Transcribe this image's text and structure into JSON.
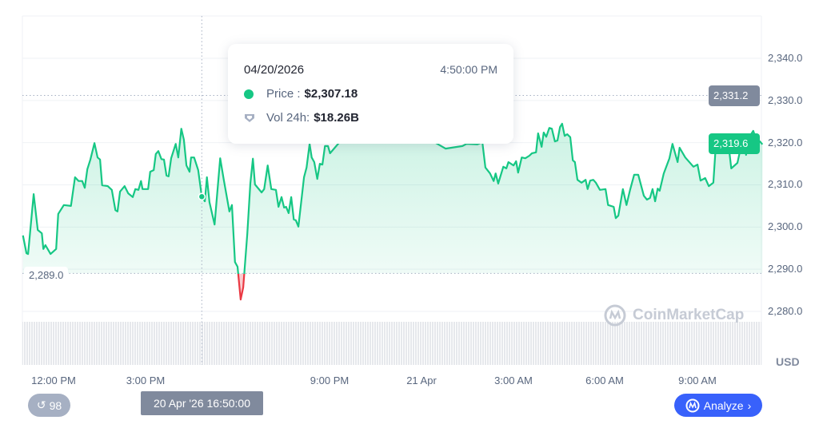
{
  "tooltip": {
    "date": "04/20/2026",
    "time": "4:50:00 PM",
    "price_label": "Price :",
    "price_value": "$2,307.18",
    "vol_label": "Vol 24h:",
    "vol_value": "$18.26B"
  },
  "crosshair_time": "20 Apr '26 16:50:00",
  "crosshair_price": "2,331.2",
  "current_price": "2,319.6",
  "baseline_label": "2,289.0",
  "currency": "USD",
  "history_count": "98",
  "analyze_label": "Analyze",
  "watermark": "CoinMarketCap",
  "colors": {
    "up": "#16c784",
    "down": "#ea3943",
    "crosshair_badge": "#808a9d",
    "analyze": "#3861fb"
  },
  "chart_data": {
    "type": "area",
    "baseline": 2289.0,
    "ylim": [
      2270,
      2350
    ],
    "y_ticks": [
      "2,340.0",
      "2,330.0",
      "2,320.0",
      "2,310.0",
      "2,300.0",
      "2,290.0",
      "2,280.0"
    ],
    "x_ticks": [
      "12:00 PM",
      "3:00 PM",
      "9:00 PM",
      "21 Apr",
      "3:00 AM",
      "6:00 AM",
      "9:00 AM"
    ],
    "grid": true,
    "points": [
      [
        "04/20 11:00",
        2298.0
      ],
      [
        "04/20 11:07",
        2293.8
      ],
      [
        "04/20 11:10",
        2293.6
      ],
      [
        "04/20 11:21",
        2307.8
      ],
      [
        "04/20 11:29",
        2299.3
      ],
      [
        "04/20 11:37",
        2298.5
      ],
      [
        "04/20 11:40",
        2294.8
      ],
      [
        "04/20 11:44",
        2295.7
      ],
      [
        "04/20 11:54",
        2293.6
      ],
      [
        "04/20 12:05",
        2294.8
      ],
      [
        "04/20 12:09",
        2303.1
      ],
      [
        "04/20 12:20",
        2305.2
      ],
      [
        "04/20 12:34",
        2305.0
      ],
      [
        "04/20 12:42",
        2311.8
      ],
      [
        "04/20 12:49",
        2310.9
      ],
      [
        "04/20 12:56",
        2310.9
      ],
      [
        "04/20 13:01",
        2309.3
      ],
      [
        "04/20 13:06",
        2313.7
      ],
      [
        "04/20 13:12",
        2316.0
      ],
      [
        "04/20 13:20",
        2319.9
      ],
      [
        "04/20 13:26",
        2316.5
      ],
      [
        "04/20 13:31",
        2316.0
      ],
      [
        "04/20 13:35",
        2309.9
      ],
      [
        "04/20 13:46",
        2309.7
      ],
      [
        "04/20 13:54",
        2308.8
      ],
      [
        "04/20 14:01",
        2304.0
      ],
      [
        "04/20 14:05",
        2303.7
      ],
      [
        "04/20 14:10",
        2308.4
      ],
      [
        "04/20 14:19",
        2309.7
      ],
      [
        "04/20 14:26",
        2308.0
      ],
      [
        "04/20 14:35",
        2307.1
      ],
      [
        "04/20 14:40",
        2309.0
      ],
      [
        "04/20 14:46",
        2308.8
      ],
      [
        "04/20 14:51",
        2310.9
      ],
      [
        "04/20 14:54",
        2309.0
      ],
      [
        "04/20 15:05",
        2309.0
      ],
      [
        "04/20 15:09",
        2313.1
      ],
      [
        "04/20 15:16",
        2313.5
      ],
      [
        "04/20 15:20",
        2317.3
      ],
      [
        "04/20 15:25",
        2318.0
      ],
      [
        "04/20 15:31",
        2316.1
      ],
      [
        "04/20 15:36",
        2316.0
      ],
      [
        "04/20 15:41",
        2312.2
      ],
      [
        "04/20 15:45",
        2312.0
      ],
      [
        "04/20 15:50",
        2316.3
      ],
      [
        "04/20 15:59",
        2319.7
      ],
      [
        "04/20 16:04",
        2316.5
      ],
      [
        "04/20 16:10",
        2323.3
      ],
      [
        "04/20 16:15",
        2320.7
      ],
      [
        "04/20 16:20",
        2314.6
      ],
      [
        "04/20 16:26",
        2313.1
      ],
      [
        "04/20 16:29",
        2316.5
      ],
      [
        "04/20 16:35",
        2316.5
      ],
      [
        "04/20 16:43",
        2313.5
      ],
      [
        "04/20 16:50",
        2307.2
      ],
      [
        "04/20 16:56",
        2306.1
      ],
      [
        "04/20 17:00",
        2311.8
      ],
      [
        "04/20 17:05",
        2305.9
      ],
      [
        "04/20 17:15",
        2300.6
      ],
      [
        "04/20 17:26",
        2316.3
      ],
      [
        "04/20 17:33",
        2311.2
      ],
      [
        "04/20 17:44",
        2303.7
      ],
      [
        "04/20 17:49",
        2305.2
      ],
      [
        "04/20 17:55",
        2291.7
      ],
      [
        "04/20 18:00",
        2290.6
      ],
      [
        "04/20 18:06",
        2282.8
      ],
      [
        "04/20 18:11",
        2285.7
      ],
      [
        "04/20 18:19",
        2298.4
      ],
      [
        "04/20 18:25",
        2310.3
      ],
      [
        "04/20 18:30",
        2316.2
      ],
      [
        "04/20 18:34",
        2310.1
      ],
      [
        "04/20 18:47",
        2308.2
      ],
      [
        "04/20 18:52",
        2309.0
      ],
      [
        "04/20 18:59",
        2314.6
      ],
      [
        "04/20 19:06",
        2309.0
      ],
      [
        "04/20 19:15",
        2308.8
      ],
      [
        "04/20 19:20",
        2304.8
      ],
      [
        "04/20 19:26",
        2307.1
      ],
      [
        "04/20 19:31",
        2304.6
      ],
      [
        "04/20 19:35",
        2304.8
      ],
      [
        "04/20 19:40",
        2303.3
      ],
      [
        "04/20 19:45",
        2307.1
      ],
      [
        "04/20 19:50",
        2301.8
      ],
      [
        "04/20 19:54",
        2301.6
      ],
      [
        "04/20 19:59",
        2300.1
      ],
      [
        "04/20 20:10",
        2311.8
      ],
      [
        "04/20 20:15",
        2314.1
      ],
      [
        "04/20 20:21",
        2319.7
      ],
      [
        "04/20 20:25",
        2316.5
      ],
      [
        "04/20 20:30",
        2315.4
      ],
      [
        "04/20 20:36",
        2311.4
      ],
      [
        "04/20 20:41",
        2315.0
      ],
      [
        "04/20 20:46",
        2314.8
      ],
      [
        "04/20 20:51",
        2319.2
      ],
      [
        "04/20 20:57",
        2319.2
      ],
      [
        "04/20 21:01",
        2317.5
      ],
      [
        "04/20 21:28",
        2321.3
      ],
      [
        "04/20 22:15",
        2322.0
      ],
      [
        "04/20 23:02",
        2320.7
      ],
      [
        "04/20 23:49",
        2321.6
      ],
      [
        "04/21 00:20",
        2320.5
      ],
      [
        "04/21 00:31",
        2319.7
      ],
      [
        "04/21 00:47",
        2318.6
      ],
      [
        "04/21 01:20",
        2319.2
      ],
      [
        "04/21 01:28",
        2319.7
      ],
      [
        "04/21 01:49",
        2319.6
      ],
      [
        "04/21 01:59",
        2320.1
      ],
      [
        "04/21 02:05",
        2314.1
      ],
      [
        "04/21 02:14",
        2312.7
      ],
      [
        "04/21 02:21",
        2310.9
      ],
      [
        "04/21 02:25",
        2312.7
      ],
      [
        "04/21 02:30",
        2310.3
      ],
      [
        "04/21 02:40",
        2314.3
      ],
      [
        "04/21 02:46",
        2313.9
      ],
      [
        "04/21 02:50",
        2315.4
      ],
      [
        "04/21 03:00",
        2314.6
      ],
      [
        "04/21 03:05",
        2315.6
      ],
      [
        "04/21 03:09",
        2312.9
      ],
      [
        "04/21 03:16",
        2316.5
      ],
      [
        "04/21 03:23",
        2316.3
      ],
      [
        "04/21 03:31",
        2316.9
      ],
      [
        "04/21 03:36",
        2317.5
      ],
      [
        "04/21 03:44",
        2317.7
      ],
      [
        "04/21 03:48",
        2322.2
      ],
      [
        "04/21 03:55",
        2319.0
      ],
      [
        "04/21 03:59",
        2322.4
      ],
      [
        "04/21 04:04",
        2321.4
      ],
      [
        "04/21 04:10",
        2323.5
      ],
      [
        "04/21 04:15",
        2323.3
      ],
      [
        "04/21 04:21",
        2320.3
      ],
      [
        "04/21 04:26",
        2320.5
      ],
      [
        "04/21 04:31",
        2323.7
      ],
      [
        "04/21 04:35",
        2324.5
      ],
      [
        "04/21 04:40",
        2321.6
      ],
      [
        "04/21 04:45",
        2322.0
      ],
      [
        "04/21 04:51",
        2321.3
      ],
      [
        "04/21 04:56",
        2315.8
      ],
      [
        "04/21 05:00",
        2315.4
      ],
      [
        "04/21 05:05",
        2311.2
      ],
      [
        "04/21 05:13",
        2310.5
      ],
      [
        "04/21 05:21",
        2311.2
      ],
      [
        "04/21 05:25",
        2309.0
      ],
      [
        "04/21 05:30",
        2311.0
      ],
      [
        "04/21 05:36",
        2311.2
      ],
      [
        "04/21 05:41",
        2310.5
      ],
      [
        "04/21 05:49",
        2308.8
      ],
      [
        "04/21 06:00",
        2309.0
      ],
      [
        "04/21 06:05",
        2305.2
      ],
      [
        "04/21 06:16",
        2304.8
      ],
      [
        "04/21 06:20",
        2302.1
      ],
      [
        "04/21 06:25",
        2302.7
      ],
      [
        "04/21 06:31",
        2306.9
      ],
      [
        "04/21 06:34",
        2309.0
      ],
      [
        "04/21 06:41",
        2305.2
      ],
      [
        "04/21 06:48",
        2308.8
      ],
      [
        "04/21 06:56",
        2312.4
      ],
      [
        "04/21 07:04",
        2312.4
      ],
      [
        "04/21 07:15",
        2307.4
      ],
      [
        "04/21 07:21",
        2306.5
      ],
      [
        "04/21 07:27",
        2306.9
      ],
      [
        "04/21 07:32",
        2309.0
      ],
      [
        "04/21 07:37",
        2306.1
      ],
      [
        "04/21 07:42",
        2309.1
      ],
      [
        "04/21 07:46",
        2308.6
      ],
      [
        "04/21 07:54",
        2312.7
      ],
      [
        "04/21 08:05",
        2316.3
      ],
      [
        "04/21 08:11",
        2319.7
      ],
      [
        "04/21 08:21",
        2315.4
      ],
      [
        "04/21 08:25",
        2318.8
      ],
      [
        "04/21 08:36",
        2316.5
      ],
      [
        "04/21 08:52",
        2314.3
      ],
      [
        "04/21 09:00",
        2314.8
      ],
      [
        "04/21 09:06",
        2311.0
      ],
      [
        "04/21 09:15",
        2311.6
      ],
      [
        "04/21 09:22",
        2309.7
      ],
      [
        "04/21 09:31",
        2310.5
      ],
      [
        "04/21 09:36",
        2319.7
      ],
      [
        "04/21 09:41",
        2321.1
      ],
      [
        "04/21 09:50",
        2320.5
      ],
      [
        "04/21 09:56",
        2318.4
      ],
      [
        "04/21 10:02",
        2318.2
      ],
      [
        "04/21 10:06",
        2313.9
      ],
      [
        "04/21 10:18",
        2315.2
      ],
      [
        "04/21 10:29",
        2321.3
      ],
      [
        "04/21 10:35",
        2317.1
      ],
      [
        "04/21 10:40",
        2321.1
      ],
      [
        "04/21 10:49",
        2322.8
      ],
      [
        "04/21 10:56",
        2320.3
      ],
      [
        "04/21 11:02",
        2320.3
      ],
      [
        "04/21 11:07",
        2319.6
      ]
    ]
  }
}
